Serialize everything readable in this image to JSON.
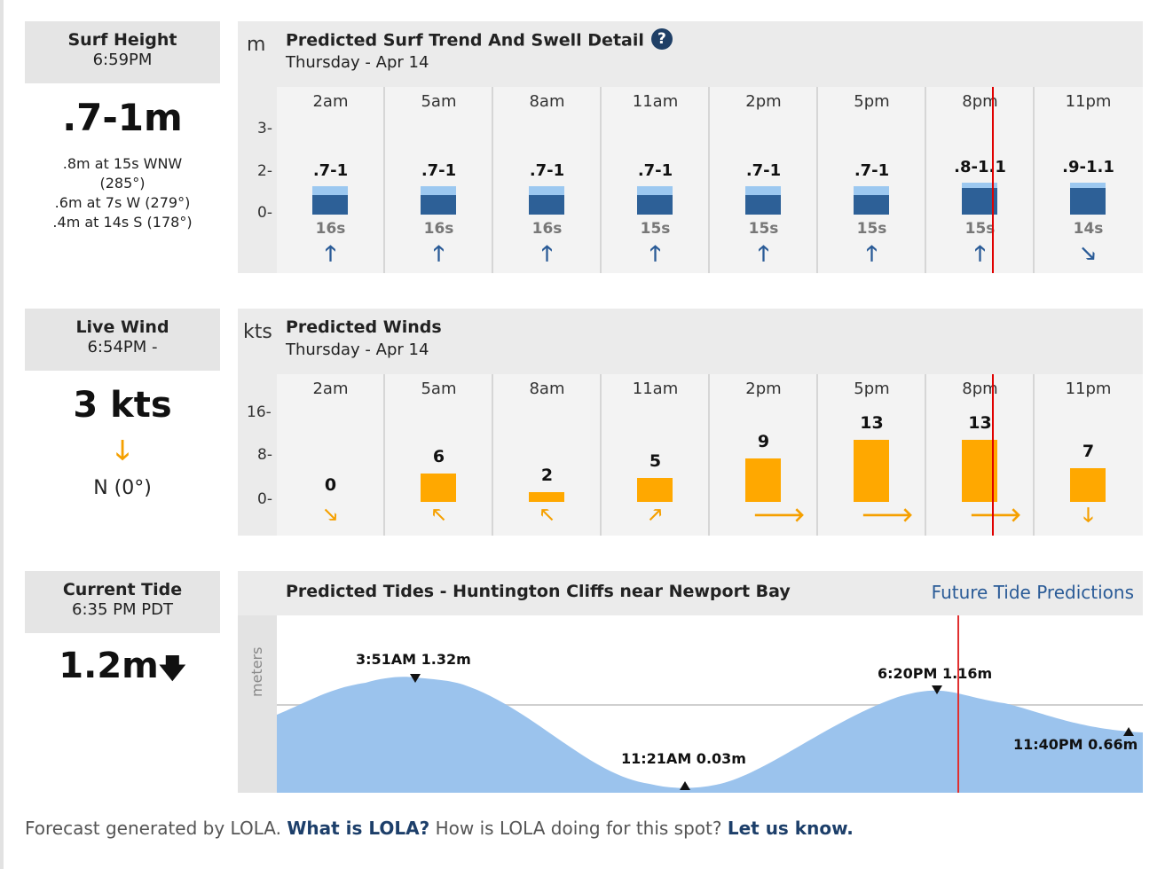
{
  "surf": {
    "header": {
      "title": "Surf Height",
      "time": "6:59PM"
    },
    "value": ".7-1m",
    "swells": [
      ".8m at 15s WNW",
      "(285°)",
      ".6m at 7s W (279°)",
      ".4m at 14s S (178°)"
    ],
    "panel": {
      "unit": "m",
      "title": "Predicted Surf Trend And Swell Detail",
      "help_icon": "question-circle-icon",
      "date": "Thursday - Apr 14"
    },
    "y_ticks": [
      "3-",
      "2-",
      "0-"
    ],
    "columns": [
      {
        "time": "2am",
        "range": ".7-1",
        "period": "16s",
        "dir_icon": "arrow-up-icon",
        "dir_glyph": "🡑"
      },
      {
        "time": "5am",
        "range": ".7-1",
        "period": "16s",
        "dir_icon": "arrow-up-icon",
        "dir_glyph": "🡑"
      },
      {
        "time": "8am",
        "range": ".7-1",
        "period": "16s",
        "dir_icon": "arrow-up-icon",
        "dir_glyph": "🡑"
      },
      {
        "time": "11am",
        "range": ".7-1",
        "period": "15s",
        "dir_icon": "arrow-up-icon",
        "dir_glyph": "🡑"
      },
      {
        "time": "2pm",
        "range": ".7-1",
        "period": "15s",
        "dir_icon": "arrow-up-icon",
        "dir_glyph": "🡑"
      },
      {
        "time": "5pm",
        "range": ".7-1",
        "period": "15s",
        "dir_icon": "arrow-up-icon",
        "dir_glyph": "🡑"
      },
      {
        "time": "8pm",
        "range": ".8-1.1",
        "period": "15s",
        "dir_icon": "arrow-up-icon",
        "dir_glyph": "🡑"
      },
      {
        "time": "11pm",
        "range": ".9-1.1",
        "period": "14s",
        "dir_icon": "arrow-down-right-icon",
        "dir_glyph": "🡖"
      }
    ],
    "colors": {
      "bar_dark": "#2d6097",
      "bar_light": "#9cc8f0"
    }
  },
  "wind": {
    "header": {
      "title": "Live Wind",
      "time": "6:54PM -"
    },
    "value": "3 kts",
    "arrow_icon": "arrow-down-icon",
    "arrow_glyph": "🡓",
    "direction": "N (0°)",
    "panel": {
      "unit": "kts",
      "title": "Predicted Winds",
      "date": "Thursday - Apr 14"
    },
    "y_ticks": [
      "16-",
      "8-",
      "0-"
    ],
    "columns": [
      {
        "time": "2am",
        "speed": "0",
        "speed_value": 0,
        "dir_icon": "arrow-down-right-icon",
        "dir_glyph": "🡖"
      },
      {
        "time": "5am",
        "speed": "6",
        "speed_value": 6,
        "dir_icon": "arrow-up-left-icon",
        "dir_glyph": "🡔"
      },
      {
        "time": "8am",
        "speed": "2",
        "speed_value": 2,
        "dir_icon": "arrow-up-left-icon",
        "dir_glyph": "🡔"
      },
      {
        "time": "11am",
        "speed": "5",
        "speed_value": 5,
        "dir_icon": "arrow-up-right-icon",
        "dir_glyph": "🡕"
      },
      {
        "time": "2pm",
        "speed": "9",
        "speed_value": 9,
        "dir_icon": "arrow-right-icon",
        "dir_glyph": "🡒"
      },
      {
        "time": "5pm",
        "speed": "13",
        "speed_value": 13,
        "dir_icon": "arrow-right-icon",
        "dir_glyph": "🡒"
      },
      {
        "time": "8pm",
        "speed": "13",
        "speed_value": 13,
        "dir_icon": "arrow-right-icon",
        "dir_glyph": "🡒"
      },
      {
        "time": "11pm",
        "speed": "7",
        "speed_value": 7,
        "dir_icon": "arrow-down-icon",
        "dir_glyph": "🡓"
      }
    ],
    "colors": {
      "bar": "#ffa800",
      "arrow": "#f5a000"
    }
  },
  "tide": {
    "header": {
      "title": "Current Tide",
      "time": "6:35 PM PDT"
    },
    "value": "1.2m",
    "trend_icon": "arrow-down-icon",
    "trend_glyph": "🡇",
    "panel": {
      "title": "Predicted Tides - Huntington Cliffs near Newport Bay",
      "link": "Future Tide Predictions",
      "y_label": "meters"
    },
    "labels": [
      "3:51AM 1.32m",
      "11:21AM 0.03m",
      "6:20PM 1.16m",
      "11:40PM 0.66m"
    ],
    "colors": {
      "fill": "#9bc3ed",
      "link": "#2a5b97"
    }
  },
  "footer": {
    "prefix": "Forecast generated by LOLA. ",
    "link1": "What is LOLA?",
    "middle": " How is LOLA doing for this spot? ",
    "link2": "Let us know."
  }
}
